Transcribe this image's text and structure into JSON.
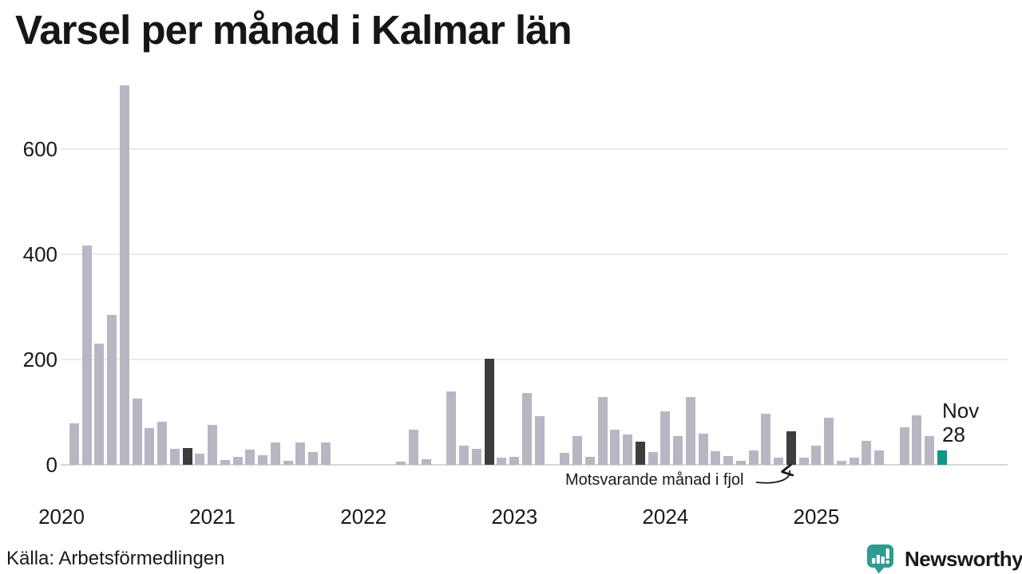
{
  "title": "Varsel per månad i Kalmar län",
  "annotations": {
    "compare": "Motsvarande månad i fjol",
    "current_month": "Nov",
    "current_value": "28"
  },
  "footer": {
    "source": "Källa: Arbetsförmedlingen",
    "brand_text": "Newsworthy"
  },
  "colors": {
    "bar_normal": "#b9b6c4",
    "bar_fjol": "#3d3d3d",
    "bar_current": "#0d978a",
    "grid": "#e9e9ef",
    "baseline": "#d6d6db",
    "text": "#191919",
    "brand_teal": "#2f9c8f"
  },
  "chart_data": {
    "type": "bar",
    "title": "Varsel per månad i Kalmar län",
    "xlabel": "",
    "ylabel": "",
    "y_ticks": [
      0,
      200,
      400,
      600
    ],
    "ylim": [
      0,
      730
    ],
    "grid": "horizontal",
    "legend": "none",
    "months": [
      "2020-01",
      "2020-02",
      "2020-03",
      "2020-04",
      "2020-05",
      "2020-06",
      "2020-07",
      "2020-08",
      "2020-09",
      "2020-10",
      "2020-11",
      "2020-12",
      "2021-01",
      "2021-02",
      "2021-03",
      "2021-04",
      "2021-05",
      "2021-06",
      "2021-07",
      "2021-08",
      "2021-09",
      "2021-10",
      "2021-11",
      "2021-12",
      "2022-01",
      "2022-02",
      "2022-03",
      "2022-04",
      "2022-05",
      "2022-06",
      "2022-07",
      "2022-08",
      "2022-09",
      "2022-10",
      "2022-11",
      "2022-12",
      "2023-01",
      "2023-02",
      "2023-03",
      "2023-04",
      "2023-05",
      "2023-06",
      "2023-07",
      "2023-08",
      "2023-09",
      "2023-10",
      "2023-11",
      "2023-12",
      "2024-01",
      "2024-02",
      "2024-03",
      "2024-04",
      "2024-05",
      "2024-06",
      "2024-07",
      "2024-08",
      "2024-09",
      "2024-10",
      "2024-11",
      "2024-12",
      "2025-01",
      "2025-02",
      "2025-03",
      "2025-04",
      "2025-05",
      "2025-06",
      "2025-07",
      "2025-08",
      "2025-09",
      "2025-10",
      "2025-11"
    ],
    "values": [
      0,
      78,
      417,
      230,
      285,
      720,
      125,
      69,
      82,
      30,
      32,
      21,
      75,
      9,
      15,
      29,
      18,
      42,
      7,
      42,
      24,
      43,
      0,
      0,
      0,
      0,
      0,
      6,
      67,
      10,
      0,
      140,
      37,
      30,
      201,
      14,
      15,
      137,
      92,
      0,
      23,
      55,
      15,
      128,
      67,
      57,
      44,
      25,
      102,
      54,
      129,
      59,
      26,
      17,
      8,
      27,
      97,
      13,
      64,
      14,
      37,
      89,
      8,
      14,
      46,
      27,
      0,
      71,
      94,
      54,
      28
    ],
    "fjol_indices": [
      10,
      22,
      34,
      46,
      58
    ],
    "current_index": 70,
    "x_year_labels": [
      {
        "index": 0,
        "label": "2020"
      },
      {
        "index": 12,
        "label": "2021"
      },
      {
        "index": 24,
        "label": "2022"
      },
      {
        "index": 36,
        "label": "2023"
      },
      {
        "index": 48,
        "label": "2024"
      },
      {
        "index": 60,
        "label": "2025"
      }
    ]
  }
}
